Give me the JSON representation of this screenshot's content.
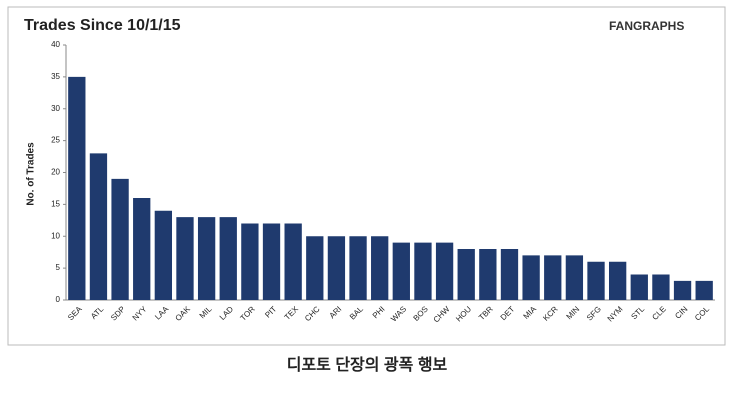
{
  "chart_data": {
    "type": "bar",
    "title": "Trades Since 10/1/15",
    "logo": "FANGRAPHS",
    "y_label": "No. of Trades",
    "caption": "디포토 단장의 광폭 행보",
    "categories": [
      "SEA",
      "ATL",
      "SDP",
      "NYY",
      "LAA",
      "OAK",
      "MIL",
      "LAD",
      "TOR",
      "PIT",
      "TEX",
      "CHC",
      "ARI",
      "BAL",
      "PHI",
      "WAS",
      "BOS",
      "CHW",
      "HOU",
      "TBR",
      "DET",
      "MIA",
      "KCR",
      "MIN",
      "SFG",
      "NYM",
      "STL",
      "CLE",
      "CIN",
      "COL"
    ],
    "values": [
      35,
      23,
      19,
      16,
      14,
      13,
      13,
      13,
      12,
      12,
      12,
      10,
      10,
      10,
      10,
      9,
      9,
      9,
      8,
      8,
      8,
      7,
      7,
      7,
      6,
      6,
      4,
      4,
      3,
      3
    ],
    "color": "#1f3a6e",
    "ylim": [
      0,
      40
    ],
    "yticks": [
      0,
      5,
      10,
      15,
      20,
      25,
      30,
      35,
      40
    ],
    "grid": false
  }
}
